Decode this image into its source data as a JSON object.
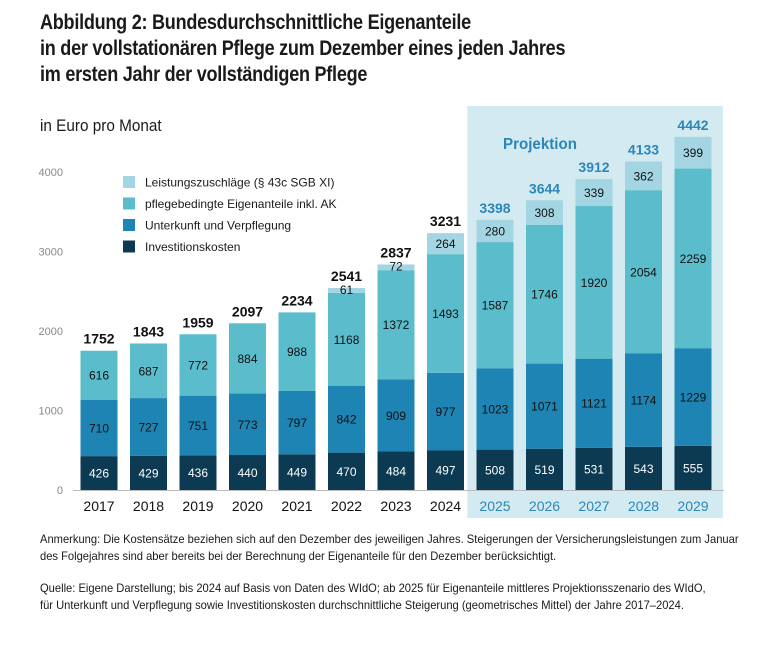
{
  "title_lines": [
    "Abbildung 2: Bundesdurchschnittliche Eigenanteile",
    "in der vollstationären Pflege zum Dezember eines jeden Jahres",
    "im ersten Jahr der vollständigen Pflege"
  ],
  "subtitle": "in Euro pro Monat",
  "chart_data": {
    "type": "bar",
    "stacked": true,
    "title": "Bundesdurchschnittliche Eigenanteile in der vollstationären Pflege zum Dezember eines jeden Jahres im ersten Jahr der vollständigen Pflege",
    "ylabel": "in Euro pro Monat",
    "ylim": [
      0,
      4500
    ],
    "yticks": [
      0,
      1000,
      2000,
      3000,
      4000
    ],
    "categories": [
      "2017",
      "2018",
      "2019",
      "2020",
      "2021",
      "2022",
      "2023",
      "2024",
      "2025",
      "2026",
      "2027",
      "2028",
      "2029"
    ],
    "projection_label": "Projektion",
    "projection_start": "2025",
    "series": [
      {
        "name": "Investitionskosten",
        "color": "#0c3a52",
        "values": [
          426,
          429,
          436,
          440,
          449,
          470,
          484,
          497,
          508,
          519,
          531,
          543,
          555
        ]
      },
      {
        "name": "Unterkunft und Verpflegung",
        "color": "#1d84b4",
        "values": [
          710,
          727,
          751,
          773,
          797,
          842,
          909,
          977,
          1023,
          1071,
          1121,
          1174,
          1229
        ]
      },
      {
        "name": "pflegebedingte Eigenanteile inkl. AK",
        "color": "#5bbccc",
        "values": [
          616,
          687,
          772,
          884,
          988,
          1168,
          1372,
          1493,
          1587,
          1746,
          1920,
          2054,
          2259
        ]
      },
      {
        "name": "Leistungszuschläge (§ 43c SGB XI)",
        "color": "#a3d6e2",
        "values": [
          null,
          null,
          null,
          null,
          null,
          61,
          72,
          264,
          280,
          308,
          339,
          362,
          399
        ]
      }
    ],
    "totals": [
      1752,
      1843,
      1959,
      2097,
      2234,
      2541,
      2837,
      3231,
      3398,
      3644,
      3912,
      4133,
      4442
    ],
    "legend": [
      "Leistungszuschläge (§ 43c SGB XI)",
      "pflegebedingte Eigenanteile inkl. AK",
      "Unterkunft und Verpflegung",
      "Investitionskosten"
    ],
    "legend_position": "top-left",
    "highlight_color": "#d3ebf0",
    "projection_text_color": "#2b86b9",
    "grid": false
  },
  "notes": [
    "Anmerkung: Die Kostensätze beziehen sich auf den Dezember des jeweiligen Jahres. Steigerungen der Versicherungsleistungen zum Januar",
    "des Folgejahres sind aber bereits bei der Berechnung der Eigenanteile für den Dezember berücksichtigt."
  ],
  "sources": [
    "Quelle: Eigene Darstellung; bis 2024 auf Basis von Daten des WIdO; ab 2025 für Eigenanteile mittleres Projektionsszenario des WIdO,",
    "für Unterkunft und Verpflegung sowie Investitionskosten durchschnittliche Steigerung (geometrisches Mittel) der Jahre 2017–2024."
  ]
}
